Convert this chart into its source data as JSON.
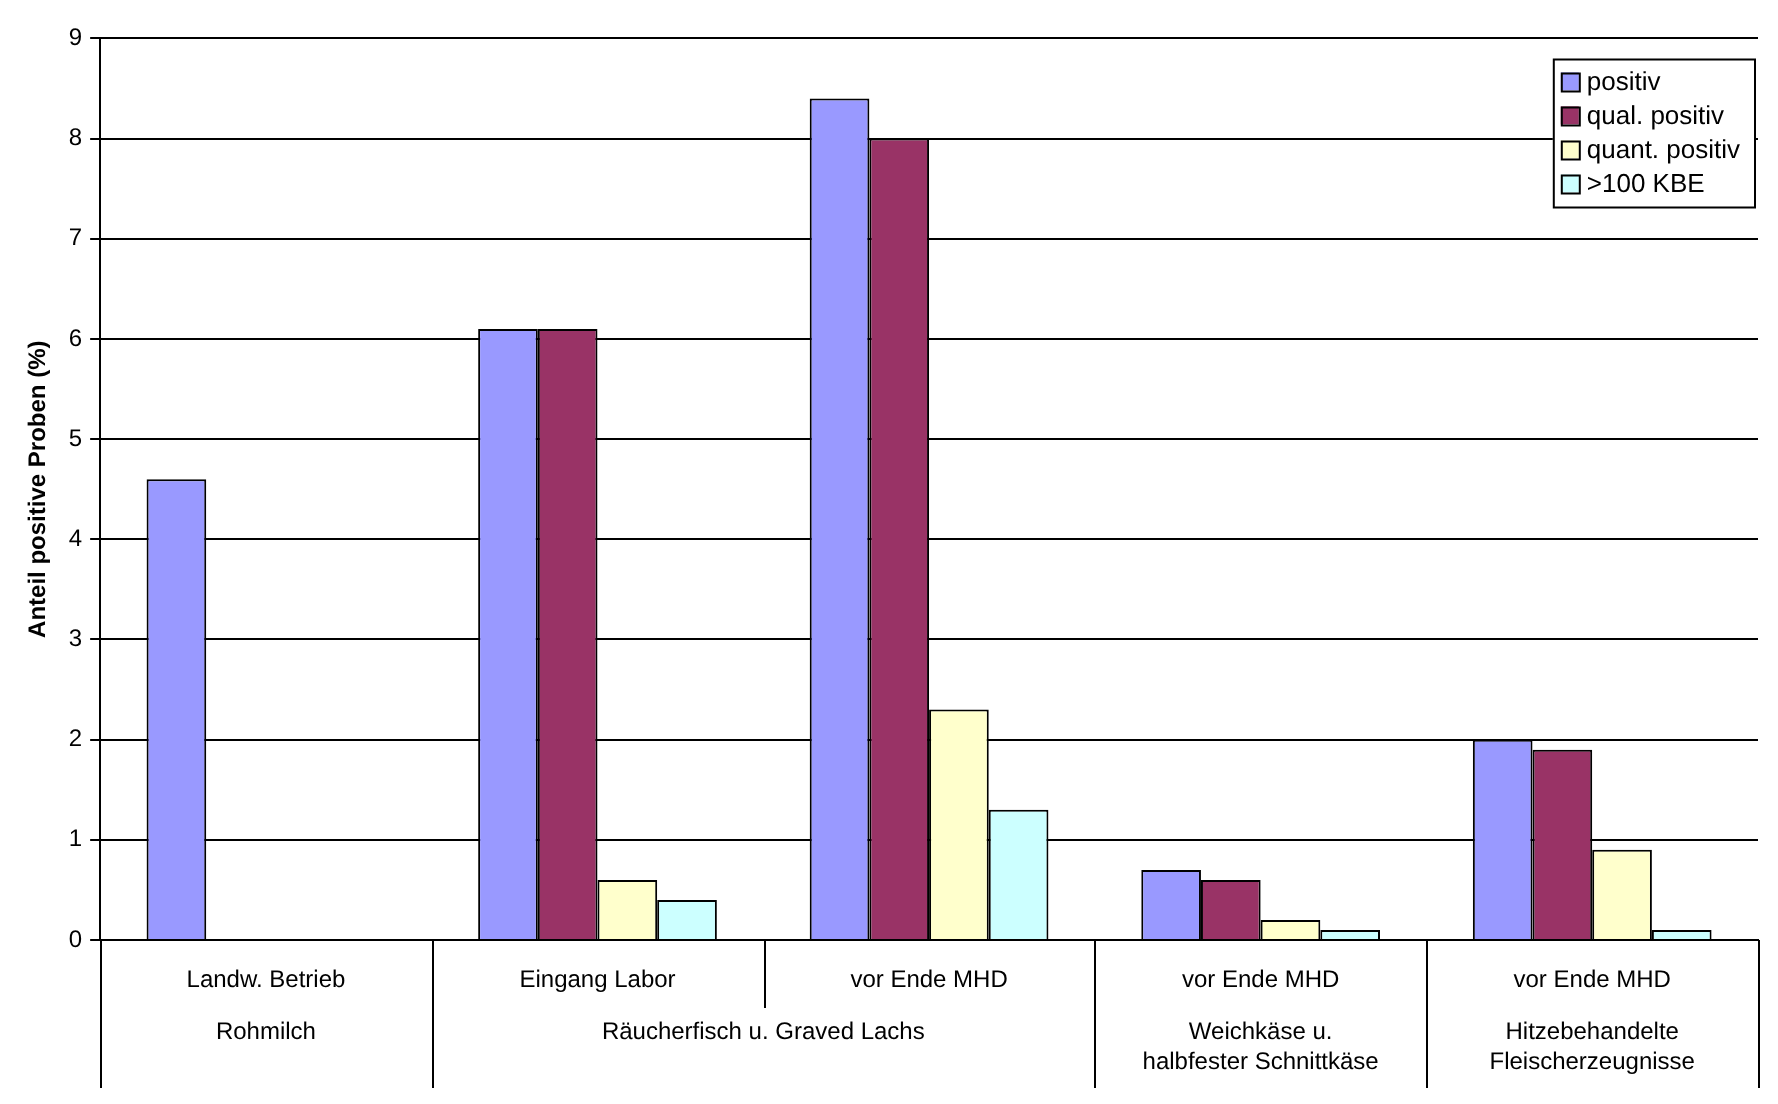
{
  "chart_data": {
    "type": "bar",
    "ylabel": "Anteil positive Proben (%)",
    "categories": [
      "Landw. Betrieb",
      "Eingang Labor",
      "vor Ende MHD",
      "vor Ende MHD",
      "vor Ende MHD"
    ],
    "series": [
      {
        "name": "positiv",
        "color": "#9999ff",
        "values": [
          4.6,
          6.1,
          8.4,
          0.7,
          2.0
        ]
      },
      {
        "name": "qual. positiv",
        "color": "#993366",
        "values": [
          null,
          6.1,
          8.0,
          0.6,
          1.9
        ]
      },
      {
        "name": "quant. positiv",
        "color": "#ffffcc",
        "values": [
          null,
          0.6,
          2.3,
          0.2,
          0.9
        ]
      },
      {
        "name": ">100 KBE",
        "color": "#ccffff",
        "values": [
          null,
          0.4,
          1.3,
          0.1,
          0.1
        ]
      }
    ],
    "annotations": [
      "Rohmilch",
      "Räucherfisch u. Graved Lachs",
      "Weichkäse u. halbfester Schnittkäse",
      "Hitzebehandelte Fleischerzeugnisse"
    ],
    "ylim": [
      0,
      9
    ],
    "yticks": [
      0,
      1,
      2,
      3,
      4,
      5,
      6,
      7,
      8,
      9
    ],
    "grid": "y",
    "legend": "top right"
  }
}
